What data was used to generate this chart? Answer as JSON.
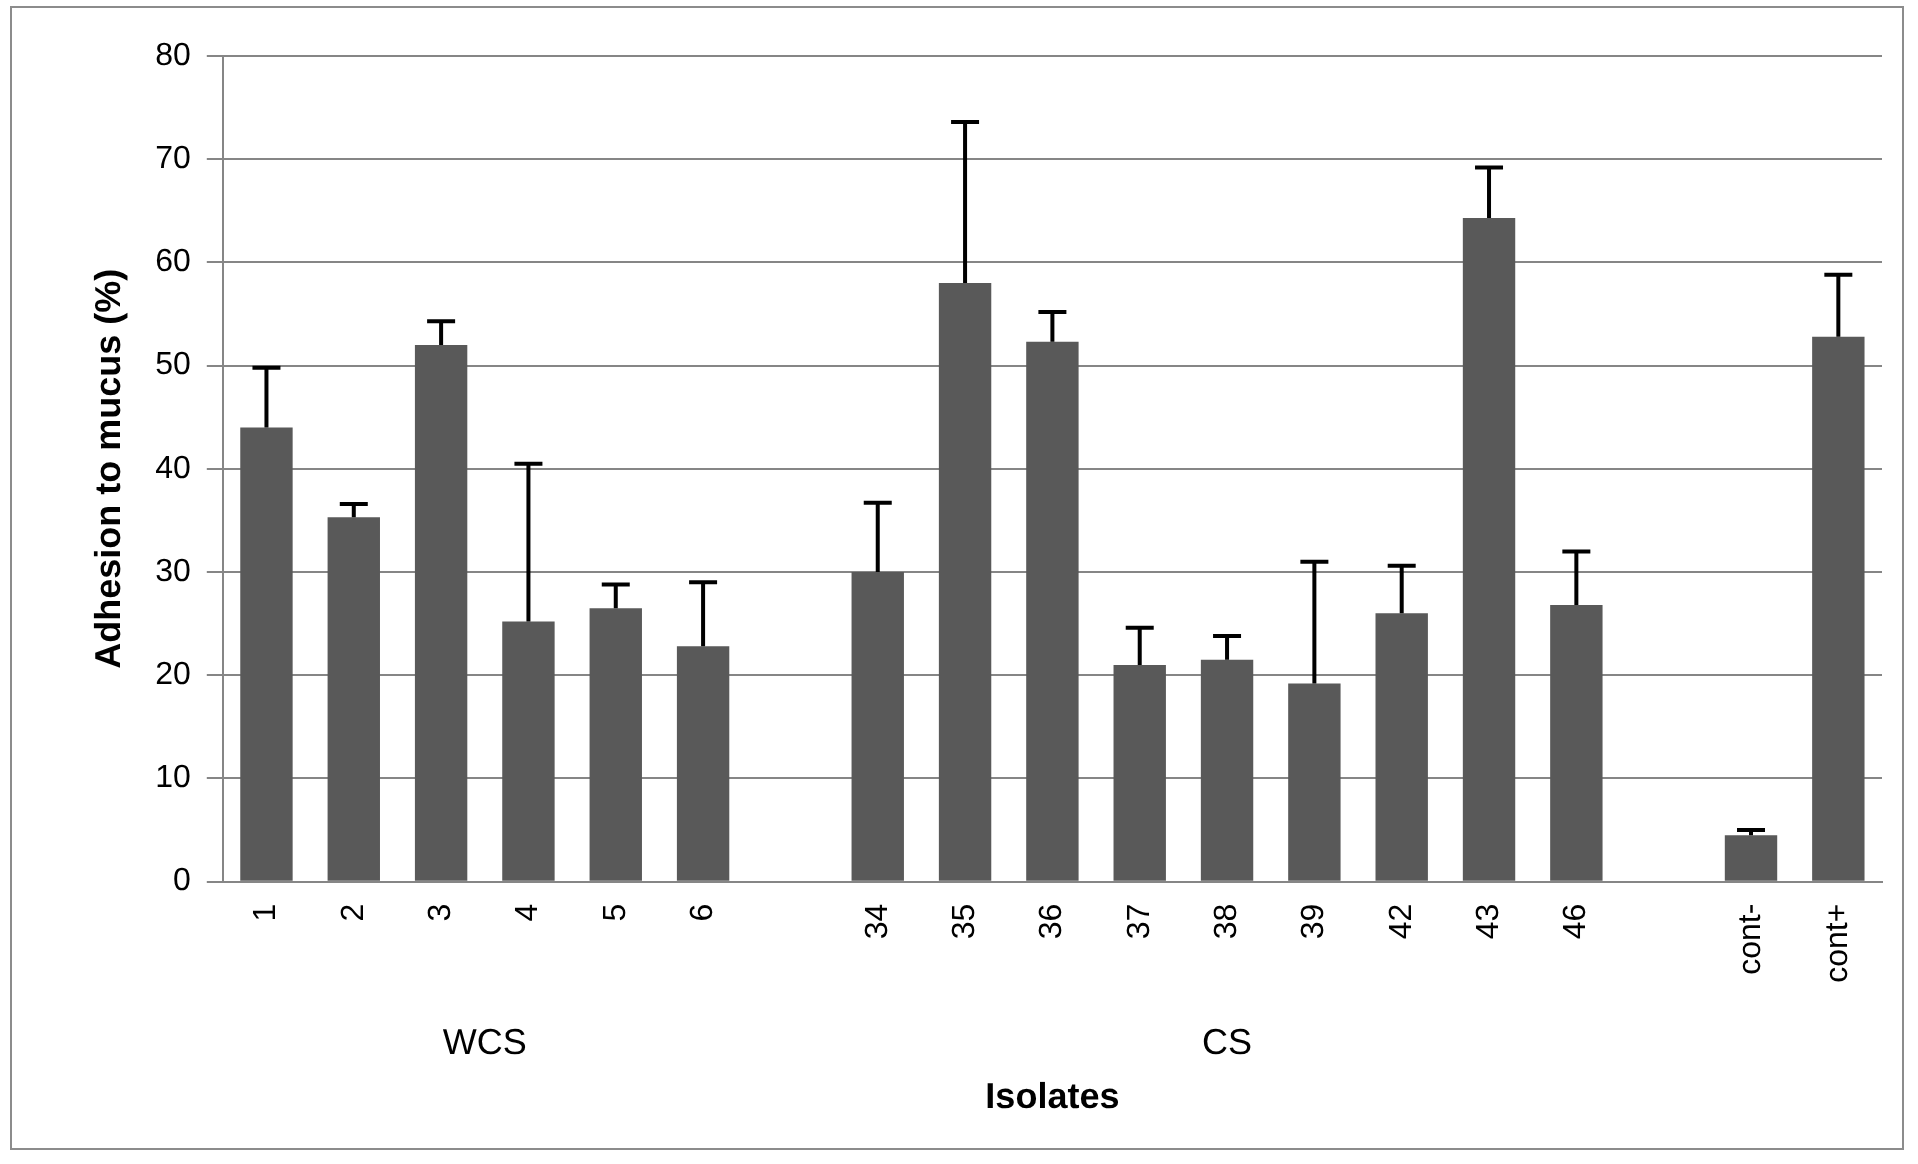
{
  "chart_data": {
    "type": "bar",
    "xlabel": "Isolates",
    "ylabel": "Adhesion to mucus (%)",
    "categories": [
      "1",
      "2",
      "3",
      "4",
      "5",
      "6",
      null,
      "34",
      "35",
      "36",
      "37",
      "38",
      "39",
      "42",
      "43",
      "46",
      null,
      "cont-",
      "cont+"
    ],
    "values": [
      44,
      35.3,
      52,
      25.2,
      26.5,
      22.8,
      null,
      30,
      58,
      52.3,
      21,
      21.5,
      19.2,
      26,
      64.3,
      26.8,
      null,
      4.5,
      52.8
    ],
    "errors": [
      [
        44,
        49.8
      ],
      [
        35.3,
        36.6
      ],
      [
        52,
        54.3
      ],
      [
        25.2,
        40.5
      ],
      [
        26.5,
        28.8
      ],
      [
        22.8,
        29
      ],
      null,
      [
        30,
        36.7
      ],
      [
        58,
        73.6
      ],
      [
        52.3,
        55.2
      ],
      [
        21,
        24.6
      ],
      [
        21.5,
        23.8
      ],
      [
        19.2,
        31
      ],
      [
        26,
        30.6
      ],
      [
        64.3,
        69.2
      ],
      [
        26.8,
        32
      ],
      null,
      [
        4.5,
        5
      ],
      [
        52.8,
        58.8
      ]
    ],
    "color": "#595959",
    "ylim": [
      0,
      80
    ],
    "yticks": [
      0,
      10,
      20,
      30,
      40,
      50,
      60,
      70,
      80
    ],
    "grid": "y",
    "legend": false,
    "annotations": [
      "WCS",
      "CS"
    ]
  }
}
